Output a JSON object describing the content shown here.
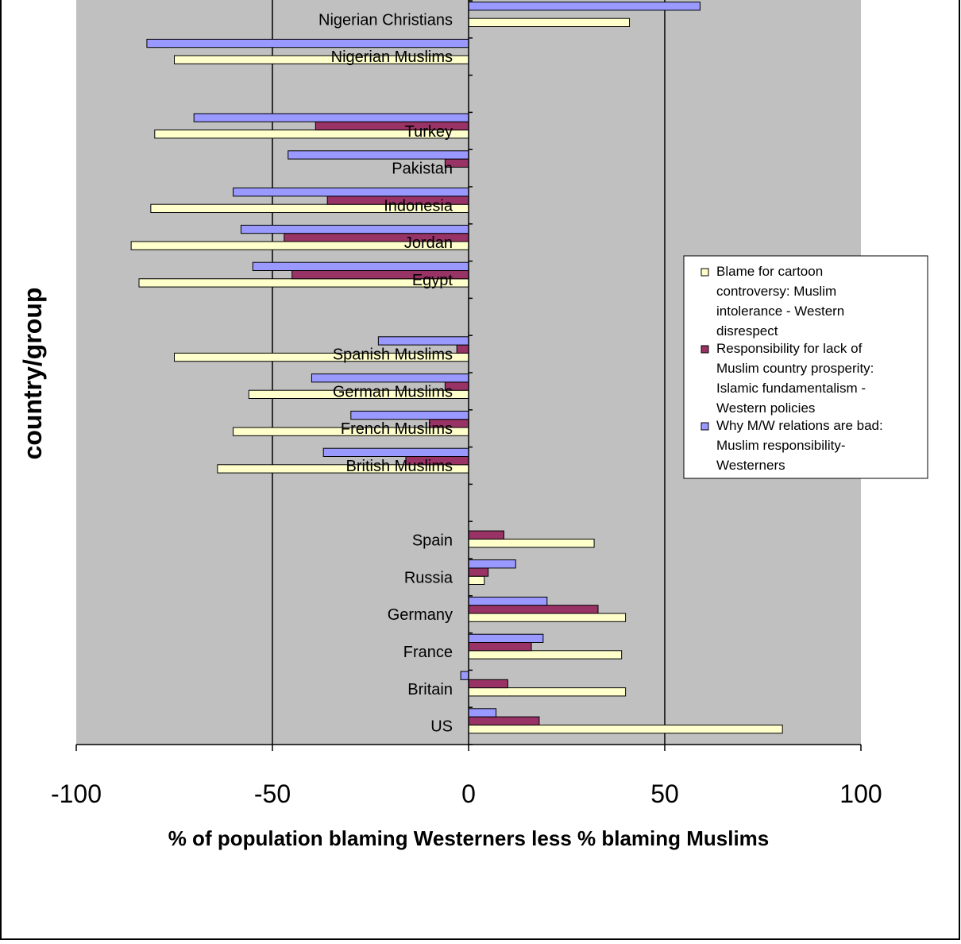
{
  "chart_data": {
    "type": "bar",
    "orientation": "horizontal",
    "title": "",
    "xlabel": "% of population blaming Westerners less % blaming Muslims",
    "ylabel": "country/group",
    "xlim": [
      -100,
      100
    ],
    "xticks": [
      -100,
      -50,
      0,
      50,
      100
    ],
    "xtick_labels": [
      "-100",
      "-50",
      "0",
      "50",
      "100"
    ],
    "grid": "vertical gridlines at -50 and 50",
    "legend_position": "right",
    "plot_background": "#c0c0c0",
    "categories": [
      "US",
      "Britain",
      "France",
      "Germany",
      "Russia",
      "Spain",
      "",
      "British Muslims",
      "French Muslims",
      "German Muslims",
      "Spanish Muslims",
      "",
      "Egypt",
      "Jordan",
      "Indonesia",
      "Pakistan",
      "Turkey",
      "",
      "Nigerian Muslims",
      "Nigerian Christians"
    ],
    "series": [
      {
        "name": "Blame for cartoon controversy: Muslim intolerance - Western disrespect",
        "legend_lines": [
          "Blame for cartoon",
          "controversy: Muslim",
          "intolerance - Western",
          "disrespect"
        ],
        "color": "#ffffcc",
        "values": [
          80,
          40,
          39,
          40,
          4,
          32,
          null,
          -64,
          -60,
          -56,
          -75,
          null,
          -84,
          -86,
          -81,
          null,
          -80,
          null,
          -75,
          41
        ]
      },
      {
        "name": "Responsibility for lack of Muslim country prosperity: Islamic fundamentalism - Western policies",
        "legend_lines": [
          "Responsibility for lack of",
          "Muslim country prosperity:",
          "Islamic fundamentalism -",
          "Western policies"
        ],
        "color": "#993366",
        "values": [
          18,
          10,
          16,
          33,
          5,
          9,
          null,
          -16,
          -10,
          -6,
          -3,
          null,
          -45,
          -47,
          -36,
          -6,
          -39,
          null,
          null,
          null
        ]
      },
      {
        "name": "Why M/W relations are bad: Muslim responsibility-Westerners",
        "legend_lines": [
          "Why M/W relations are bad:",
          "Muslim responsibility-",
          "Westerners"
        ],
        "color": "#9999ff",
        "values": [
          7,
          -2,
          19,
          20,
          12,
          null,
          null,
          -37,
          -30,
          -40,
          -23,
          null,
          -55,
          -58,
          -60,
          -46,
          -70,
          null,
          -82,
          59
        ]
      }
    ]
  }
}
